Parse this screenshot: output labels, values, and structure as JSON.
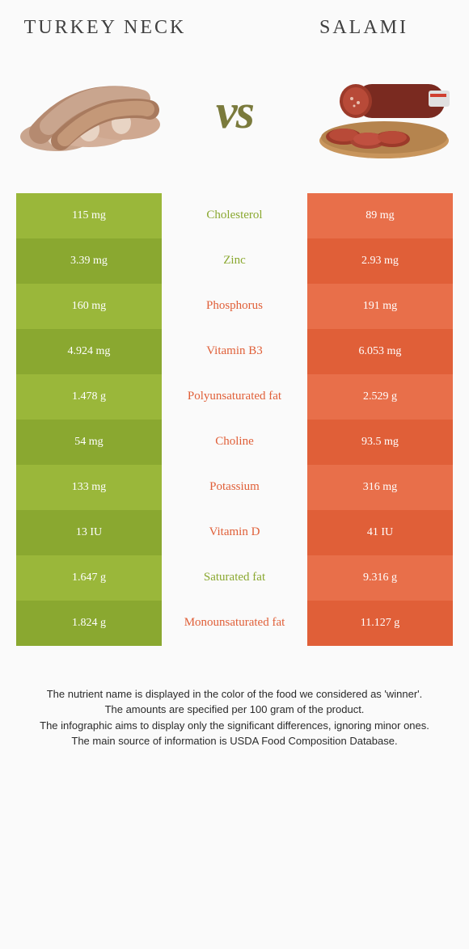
{
  "colors": {
    "green": "#9ab73a",
    "green_alt": "#8aa830",
    "orange": "#e86f4a",
    "orange_alt": "#e05f38",
    "vs": "#7a7a3c",
    "mid_text_green": "#8aa830",
    "mid_text_orange": "#e05f38"
  },
  "header": {
    "left": "Turkey neck",
    "right": "Salami",
    "vs": "vs"
  },
  "rows": [
    {
      "left": "115 mg",
      "label": "Cholesterol",
      "right": "89 mg",
      "winner": "left"
    },
    {
      "left": "3.39 mg",
      "label": "Zinc",
      "right": "2.93 mg",
      "winner": "left"
    },
    {
      "left": "160 mg",
      "label": "Phosphorus",
      "right": "191 mg",
      "winner": "right"
    },
    {
      "left": "4.924 mg",
      "label": "Vitamin B3",
      "right": "6.053 mg",
      "winner": "right"
    },
    {
      "left": "1.478 g",
      "label": "Polyunsaturated fat",
      "right": "2.529 g",
      "winner": "right"
    },
    {
      "left": "54 mg",
      "label": "Choline",
      "right": "93.5 mg",
      "winner": "right"
    },
    {
      "left": "133 mg",
      "label": "Potassium",
      "right": "316 mg",
      "winner": "right"
    },
    {
      "left": "13 IU",
      "label": "Vitamin D",
      "right": "41 IU",
      "winner": "right"
    },
    {
      "left": "1.647 g",
      "label": "Saturated fat",
      "right": "9.316 g",
      "winner": "left"
    },
    {
      "left": "1.824 g",
      "label": "Monounsaturated fat",
      "right": "11.127 g",
      "winner": "right"
    }
  ],
  "notes": [
    "The nutrient name is displayed in the color of the food we considered as 'winner'.",
    "The amounts are specified per 100 gram of the product.",
    "The infographic aims to display only the significant differences, ignoring minor ones.",
    "The main source of information is USDA Food Composition Database."
  ]
}
